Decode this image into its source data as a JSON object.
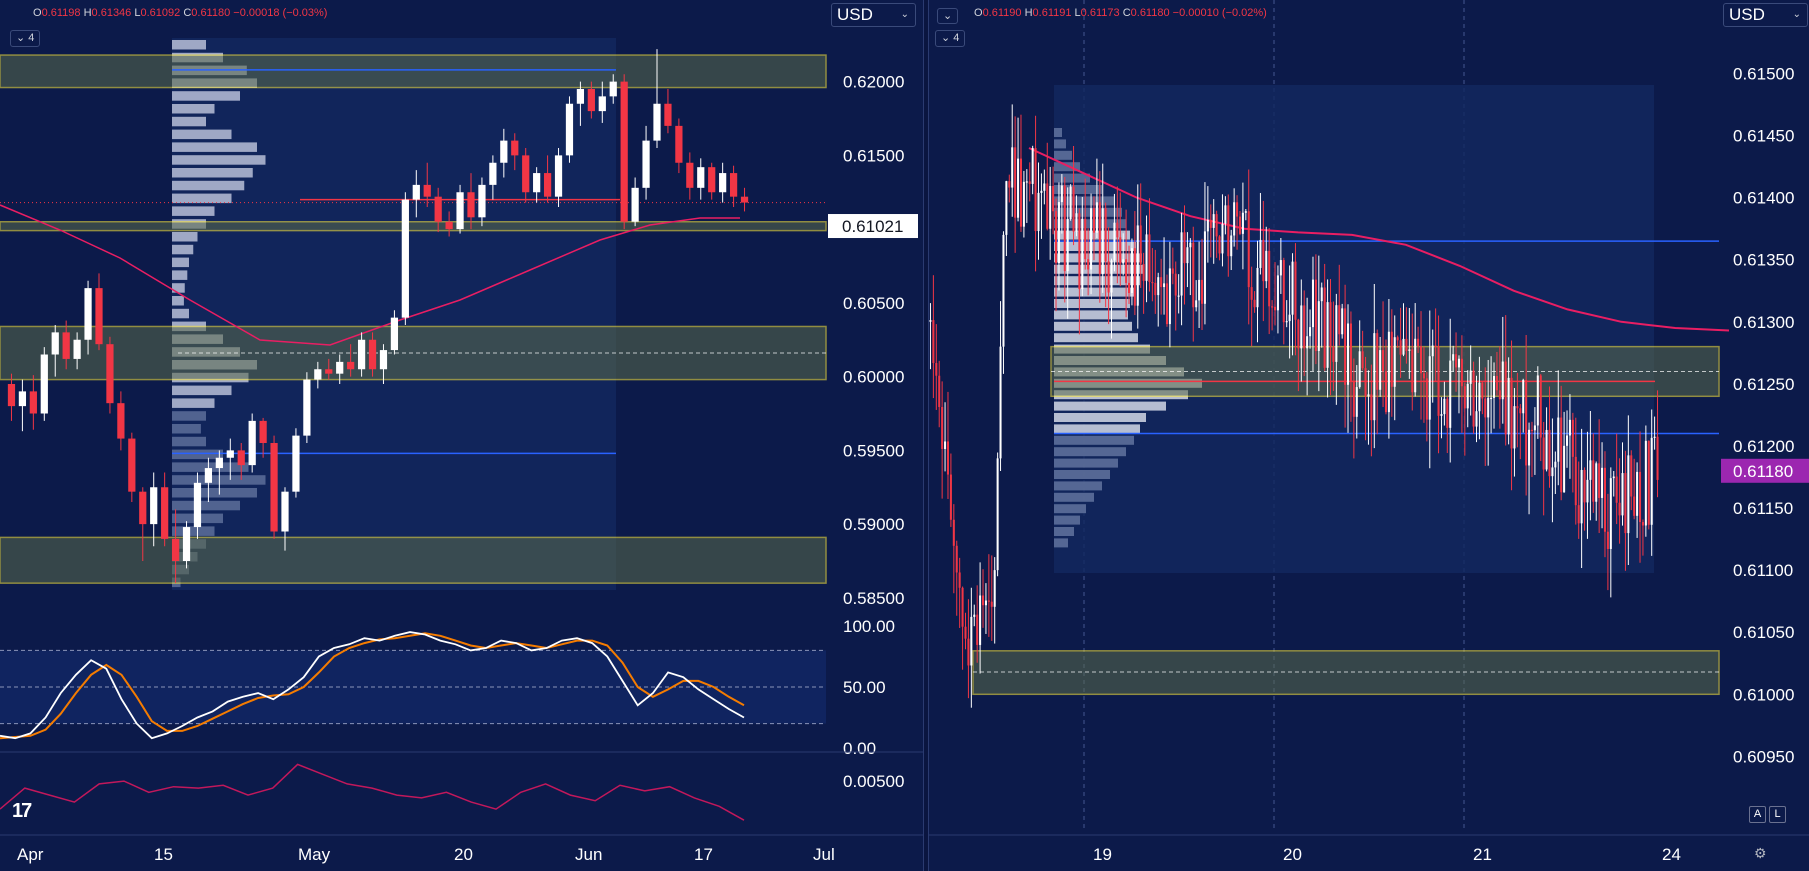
{
  "left_chart": {
    "ohlc": {
      "o_label": "O",
      "o": "0.61198",
      "h_label": "H",
      "h": "0.61346",
      "l_label": "L",
      "l": "0.61092",
      "c_label": "C",
      "c": "0.61180",
      "change": "−0.00018",
      "change_pct": "(−0.03%)"
    },
    "indicator_count": "4",
    "currency": "USD",
    "price_label": "0.61021",
    "logo_text": "17"
  },
  "right_chart": {
    "ohlc": {
      "o_label": "O",
      "o": "0.61190",
      "h_label": "H",
      "h": "0.61191",
      "l_label": "L",
      "l": "0.61173",
      "c_label": "C",
      "c": "0.61180",
      "change": "−0.00010",
      "change_pct": "(−0.02%)"
    },
    "indicator_count": "4",
    "currency": "USD",
    "price_label": "0.61180",
    "btn_a": "A",
    "btn_l": "L"
  },
  "colors": {
    "background": "#0c1a4a",
    "up": "#ffffff",
    "down": "#f23645",
    "zone": "#ffeb3b",
    "poc": "#2962ff",
    "ma": "#e91e63",
    "stoch_k": "#ffffff",
    "stoch_d": "#f57c00",
    "price_badge": "#9c27b0"
  },
  "chart_data": [
    {
      "type": "candlestick",
      "name_on_chart": "",
      "x_ticks": [
        "Apr",
        "15",
        "May",
        "20",
        "Jun",
        "17",
        "Jul"
      ],
      "y_ticks": [
        "0.62000",
        "0.61500",
        "0.61021",
        "0.60500",
        "0.60000",
        "0.59500",
        "0.59000",
        "0.58500"
      ],
      "ylim": [
        0.5835,
        0.6235
      ],
      "last_price": 0.6118,
      "label_price": 0.61021,
      "zones": [
        [
          0.6196,
          0.6218
        ],
        [
          0.6099,
          0.6105
        ],
        [
          0.5998,
          0.6034
        ],
        [
          0.586,
          0.5891
        ]
      ],
      "poc_lines": [
        0.6208,
        0.5948
      ],
      "candles": [
        [
          0.5995,
          0.6002,
          0.597,
          0.598
        ],
        [
          0.598,
          0.5998,
          0.5963,
          0.599
        ],
        [
          0.599,
          0.6001,
          0.5964,
          0.5975
        ],
        [
          0.5975,
          0.602,
          0.597,
          0.6015
        ],
        [
          0.6015,
          0.6035,
          0.6,
          0.603
        ],
        [
          0.603,
          0.6038,
          0.6005,
          0.6012
        ],
        [
          0.6012,
          0.603,
          0.6005,
          0.6025
        ],
        [
          0.6025,
          0.6065,
          0.6015,
          0.606
        ],
        [
          0.606,
          0.607,
          0.6018,
          0.6022
        ],
        [
          0.6022,
          0.6027,
          0.5975,
          0.5982
        ],
        [
          0.5982,
          0.599,
          0.595,
          0.5958
        ],
        [
          0.5958,
          0.5962,
          0.5915,
          0.5922
        ],
        [
          0.5922,
          0.5925,
          0.5875,
          0.59
        ],
        [
          0.59,
          0.5935,
          0.5885,
          0.5925
        ],
        [
          0.5925,
          0.5935,
          0.5885,
          0.589
        ],
        [
          0.589,
          0.591,
          0.586,
          0.5875
        ],
        [
          0.5875,
          0.5902,
          0.587,
          0.5898
        ],
        [
          0.5898,
          0.5935,
          0.589,
          0.5928
        ],
        [
          0.5928,
          0.5945,
          0.5915,
          0.5938
        ],
        [
          0.5938,
          0.595,
          0.592,
          0.5945
        ],
        [
          0.5945,
          0.5958,
          0.593,
          0.595
        ],
        [
          0.595,
          0.5955,
          0.593,
          0.594
        ],
        [
          0.594,
          0.5975,
          0.5935,
          0.597
        ],
        [
          0.597,
          0.5972,
          0.5945,
          0.5955
        ],
        [
          0.5955,
          0.596,
          0.589,
          0.5895
        ],
        [
          0.5895,
          0.5925,
          0.5882,
          0.5922
        ],
        [
          0.5922,
          0.5965,
          0.5918,
          0.596
        ],
        [
          0.596,
          0.6003,
          0.5955,
          0.5998
        ],
        [
          0.5998,
          0.601,
          0.5992,
          0.6005
        ],
        [
          0.6005,
          0.6012,
          0.5998,
          0.6002
        ],
        [
          0.6002,
          0.6015,
          0.5995,
          0.601
        ],
        [
          0.601,
          0.6022,
          0.6,
          0.6005
        ],
        [
          0.6005,
          0.603,
          0.6,
          0.6025
        ],
        [
          0.6025,
          0.603,
          0.6,
          0.6005
        ],
        [
          0.6005,
          0.6022,
          0.5995,
          0.6018
        ],
        [
          0.6018,
          0.6045,
          0.6015,
          0.604
        ],
        [
          0.604,
          0.6125,
          0.6035,
          0.612
        ],
        [
          0.612,
          0.614,
          0.6108,
          0.613
        ],
        [
          0.613,
          0.6145,
          0.6115,
          0.6122
        ],
        [
          0.6122,
          0.6128,
          0.6098,
          0.6105
        ],
        [
          0.6105,
          0.6112,
          0.6095,
          0.61
        ],
        [
          0.61,
          0.613,
          0.6097,
          0.6125
        ],
        [
          0.6125,
          0.6138,
          0.61,
          0.6108
        ],
        [
          0.6108,
          0.6135,
          0.6102,
          0.613
        ],
        [
          0.613,
          0.615,
          0.612,
          0.6145
        ],
        [
          0.6145,
          0.6168,
          0.6135,
          0.616
        ],
        [
          0.616,
          0.6165,
          0.614,
          0.615
        ],
        [
          0.615,
          0.6155,
          0.6118,
          0.6125
        ],
        [
          0.6125,
          0.6142,
          0.6118,
          0.6138
        ],
        [
          0.6138,
          0.615,
          0.6118,
          0.6122
        ],
        [
          0.6122,
          0.6155,
          0.6115,
          0.615
        ],
        [
          0.615,
          0.619,
          0.6145,
          0.6185
        ],
        [
          0.6185,
          0.62,
          0.617,
          0.6195
        ],
        [
          0.6195,
          0.62,
          0.6175,
          0.618
        ],
        [
          0.618,
          0.62,
          0.6172,
          0.619
        ],
        [
          0.619,
          0.6205,
          0.6185,
          0.62
        ],
        [
          0.62,
          0.6205,
          0.61,
          0.6105
        ],
        [
          0.6105,
          0.6135,
          0.6102,
          0.6128
        ],
        [
          0.6128,
          0.617,
          0.612,
          0.616
        ],
        [
          0.616,
          0.6222,
          0.6155,
          0.6185
        ],
        [
          0.6185,
          0.6195,
          0.6165,
          0.617
        ],
        [
          0.617,
          0.6175,
          0.6138,
          0.6145
        ],
        [
          0.6145,
          0.6152,
          0.612,
          0.6128
        ],
        [
          0.6128,
          0.6148,
          0.612,
          0.6142
        ],
        [
          0.6142,
          0.6145,
          0.612,
          0.6125
        ],
        [
          0.6125,
          0.6145,
          0.6118,
          0.6138
        ],
        [
          0.6138,
          0.6143,
          0.6115,
          0.6122
        ],
        [
          0.6122,
          0.6128,
          0.6112,
          0.6118
        ]
      ],
      "stochastic_ticks": [
        "100.00",
        "50.00",
        "0.00"
      ],
      "stochastic_ylim": [
        0,
        100
      ],
      "stochastic_k": [
        10,
        8,
        12,
        25,
        45,
        60,
        72,
        65,
        40,
        20,
        8,
        12,
        18,
        25,
        30,
        38,
        42,
        45,
        40,
        48,
        58,
        75,
        82,
        85,
        90,
        88,
        92,
        95,
        93,
        88,
        85,
        80,
        82,
        88,
        86,
        80,
        82,
        88,
        90,
        86,
        75,
        55,
        35,
        45,
        62,
        58,
        48,
        40,
        32,
        25
      ],
      "stochastic_d": [
        8,
        9,
        10,
        15,
        28,
        45,
        60,
        68,
        60,
        42,
        22,
        14,
        14,
        18,
        24,
        30,
        36,
        41,
        43,
        44,
        50,
        62,
        75,
        82,
        86,
        89,
        90,
        92,
        94,
        92,
        88,
        84,
        82,
        84,
        86,
        84,
        82,
        85,
        88,
        88,
        84,
        70,
        50,
        42,
        48,
        55,
        55,
        50,
        42,
        35
      ],
      "lower_ticks": [
        "0.00500"
      ],
      "lower_line": [
        0.003,
        0.0045,
        0.004,
        0.0035,
        0.0048,
        0.005,
        0.0042,
        0.0046,
        0.0045,
        0.0047,
        0.004,
        0.0045,
        0.0062,
        0.0055,
        0.0048,
        0.0045,
        0.004,
        0.0038,
        0.0042,
        0.0035,
        0.003,
        0.0042,
        0.0048,
        0.004,
        0.0036,
        0.0047,
        0.0043,
        0.0046,
        0.0038,
        0.0032,
        0.0022
      ]
    },
    {
      "type": "candlestick",
      "name_on_chart": "",
      "x_ticks": [
        "19",
        "20",
        "21",
        "24"
      ],
      "y_ticks": [
        "0.61500",
        "0.61450",
        "0.61400",
        "0.61350",
        "0.61300",
        "0.61250",
        "0.61200",
        "0.61180",
        "0.61150",
        "0.61100",
        "0.61050",
        "0.61000",
        "0.60950"
      ],
      "ylim": [
        0.60935,
        0.61535
      ],
      "last_price": 0.6118,
      "zones": [
        [
          0.6124,
          0.6128
        ],
        [
          0.61,
          0.61035
        ]
      ],
      "poc_lines": [
        0.61365,
        0.6121
      ],
      "ma_line": [
        0.6144,
        0.6142,
        0.614,
        0.61385,
        0.61375,
        0.61372,
        0.6137,
        0.61362,
        0.61345,
        0.61325,
        0.6131,
        0.613,
        0.61295,
        0.61293
      ],
      "candles_seed": [
        0.6108,
        0.6145,
        0.6138,
        0.6135,
        0.6133,
        0.6136,
        0.6132,
        0.6126,
        0.6125,
        0.6124,
        0.6122,
        0.6115,
        0.6118
      ]
    }
  ]
}
